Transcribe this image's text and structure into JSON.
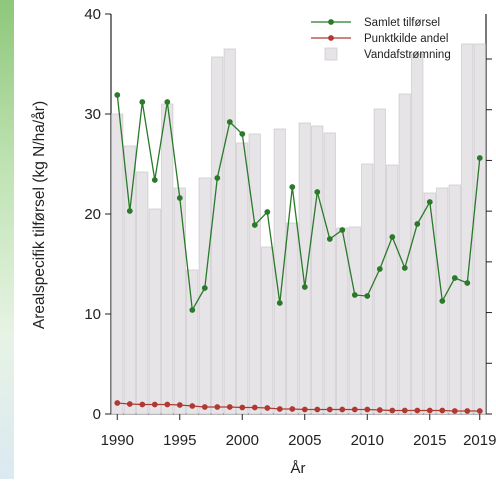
{
  "chart_data": {
    "type": "bar",
    "title": "",
    "xlabel": "År",
    "ylabel": "Arealspecifik tilførsel (kg N/ha/år)",
    "ylim": [
      0,
      40
    ],
    "yticks": [
      0,
      10,
      20,
      30,
      40
    ],
    "xticks": [
      1990,
      1995,
      2000,
      2005,
      2010,
      2015,
      2019
    ],
    "grid": false,
    "legend_position": "top-right",
    "x": [
      1990,
      1991,
      1992,
      1993,
      1994,
      1995,
      1996,
      1997,
      1998,
      1999,
      2000,
      2001,
      2002,
      2003,
      2004,
      2005,
      2006,
      2007,
      2008,
      2009,
      2010,
      2011,
      2012,
      2013,
      2014,
      2015,
      2016,
      2017,
      2018,
      2019
    ],
    "series": [
      {
        "name": "Vandafstrømning",
        "kind": "bar",
        "color": "#e7e4e8",
        "values": [
          30.0,
          26.8,
          24.2,
          20.5,
          31.0,
          22.6,
          14.4,
          23.6,
          35.7,
          36.5,
          27.1,
          28.0,
          16.7,
          28.5,
          19.1,
          29.1,
          28.8,
          28.1,
          18.6,
          18.7,
          25.0,
          30.5,
          24.9,
          32.0,
          36.0,
          22.1,
          22.6,
          22.9,
          37.0,
          37.0
        ]
      },
      {
        "name": "Samlet tilførsel",
        "kind": "line",
        "color": "#2a7a2a",
        "values": [
          31.9,
          20.3,
          31.2,
          23.4,
          31.2,
          21.6,
          10.4,
          12.6,
          23.6,
          29.2,
          28.0,
          18.9,
          20.2,
          11.1,
          22.7,
          12.7,
          22.2,
          17.5,
          18.4,
          11.9,
          11.8,
          14.5,
          17.7,
          14.6,
          19.0,
          21.2,
          11.3,
          13.6,
          13.1,
          25.6
        ]
      },
      {
        "name": "Punktkilde andel",
        "kind": "line",
        "color": "#b03a32",
        "values": [
          1.1,
          1.0,
          0.95,
          0.95,
          0.95,
          0.9,
          0.8,
          0.7,
          0.7,
          0.7,
          0.65,
          0.65,
          0.6,
          0.5,
          0.5,
          0.45,
          0.45,
          0.45,
          0.45,
          0.45,
          0.45,
          0.4,
          0.35,
          0.35,
          0.35,
          0.35,
          0.35,
          0.3,
          0.3,
          0.3
        ]
      }
    ]
  }
}
